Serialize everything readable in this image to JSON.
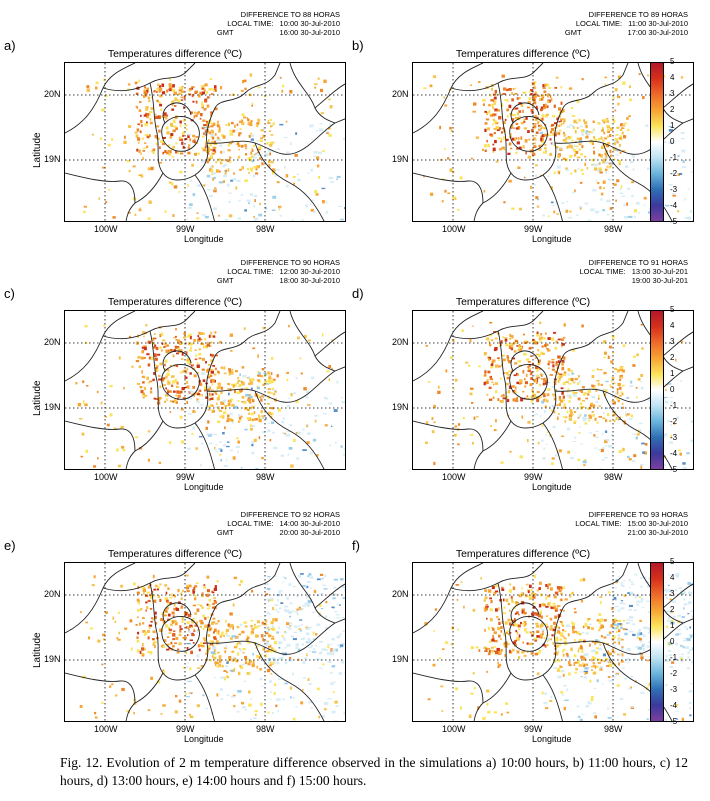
{
  "panels": [
    {
      "letter": "a)",
      "header": {
        "line1": "DIFFERENCE TO 88 HORAS",
        "lt_label": "LOCAL TIME:",
        "lt_value": "10:00 30-Jul-2010",
        "gmt_label": "GMT",
        "gmt_value": "16:00 30-Jul-2010"
      },
      "title": "Temperatures difference (ºC)"
    },
    {
      "letter": "b)",
      "header": {
        "line1": "DIFFERENCE TO 89 HORAS",
        "lt_label": "LOCAL TIME:",
        "lt_value": "11:00 30-Jul-2010",
        "gmt_label": "GMT",
        "gmt_value": "17:00 30-Jul-2010"
      },
      "title": "Temperatures difference (ºC)"
    },
    {
      "letter": "c)",
      "header": {
        "line1": "DIFFERENCE TO 90 HORAS",
        "lt_label": "LOCAL TIME:",
        "lt_value": "12:00 30-Jul-2010",
        "gmt_label": "GMT",
        "gmt_value": "18:00 30-Jul-2010"
      },
      "title": "Temperatures difference (ºC)"
    },
    {
      "letter": "d)",
      "header": {
        "line1": "DIFFERENCE TO 91 HORAS",
        "lt_label": "LOCAL TIME:",
        "lt_value": "13:00 30-Jul-201",
        "gmt_label": "",
        "gmt_value": "19:00 30-Jul-201"
      },
      "title": "Temperatures difference (ºC)"
    },
    {
      "letter": "e)",
      "header": {
        "line1": "DIFFERENCE TO 92 HORAS",
        "lt_label": "LOCAL TIME:",
        "lt_value": "14:00 30-Jul-2010",
        "gmt_label": "GMT",
        "gmt_value": "20:00 30-Jul-2010"
      },
      "title": "Temperatures difference (ºC)"
    },
    {
      "letter": "f)",
      "header": {
        "line1": "DIFFERENCE TO 93 HORAS",
        "lt_label": "LOCAL TIME:",
        "lt_value": "15:00 30-Jul-2010",
        "gmt_label": "",
        "gmt_value": "21:00 30-Jul-2010"
      },
      "title": "Temperatures difference (ºC)"
    }
  ],
  "axes": {
    "ylabel": "Latitude",
    "xlabel": "Longitude",
    "yticks": [
      "20N",
      "19N"
    ],
    "xticks": [
      "100W",
      "99W",
      "98W"
    ]
  },
  "colorbar": {
    "ticks": [
      "5",
      "4",
      "3",
      "2",
      "1",
      "0",
      "-1",
      "-2",
      "-3",
      "-4",
      "-5"
    ],
    "colors": [
      "#b2182b",
      "#d6301a",
      "#ef6a2a",
      "#f6a534",
      "#fbe35a",
      "#ffffff",
      "#bfe3f2",
      "#6ab4dc",
      "#2f6fb6",
      "#3a3a9c",
      "#7b3fa0"
    ]
  },
  "caption": "Fig. 12. Evolution of 2 m temperature difference observed in the simulations a) 10:00 hours, b) 11:00 hours, c) 12 hours, d) 13:00 hours, e) 14:00 hours and f) 15:00 hours."
}
